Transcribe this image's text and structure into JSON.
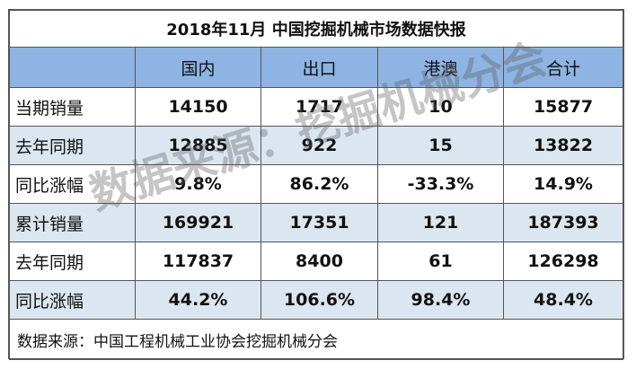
{
  "title": "2018年11月  中国挖掘机械市场数据快报",
  "table": {
    "header": [
      "",
      "国内",
      "出口",
      "港澳",
      "合计"
    ],
    "rows": [
      [
        "当期销量",
        "14150",
        "1717",
        "10",
        "15877"
      ],
      [
        "去年同期",
        "12885",
        "922",
        "15",
        "13822"
      ],
      [
        "同比涨幅",
        "9.8%",
        "86.2%",
        "-33.3%",
        "14.9%"
      ],
      [
        "累计销量",
        "169921",
        "17351",
        "121",
        "187393"
      ],
      [
        "去年同期",
        "117837",
        "8400",
        "61",
        "126298"
      ],
      [
        "同比涨幅",
        "44.2%",
        "106.6%",
        "98.4%",
        "48.4%"
      ]
    ]
  },
  "source": "数据来源：中国工程机械工业协会挖掘机械分会",
  "watermark": "数据来源：挖掘机械分会"
}
